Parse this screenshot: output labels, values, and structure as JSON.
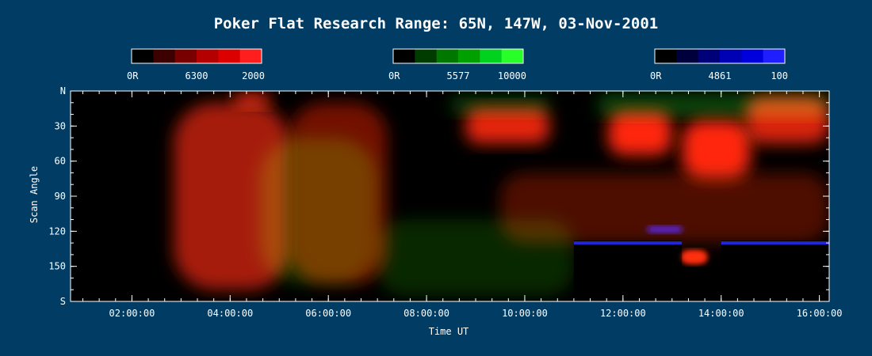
{
  "chart_data": {
    "type": "heatmap",
    "title": "Poker Flat Research Range: 65N, 147W, 03-Nov-2001",
    "xlabel": "Time UT",
    "ylabel": "Scan Angle",
    "x_range_hours": [
      0.75,
      16.2
    ],
    "x_ticks": [
      {
        "hour": 2,
        "label": "02:00:00"
      },
      {
        "hour": 4,
        "label": "04:00:00"
      },
      {
        "hour": 6,
        "label": "06:00:00"
      },
      {
        "hour": 8,
        "label": "08:00:00"
      },
      {
        "hour": 10,
        "label": "10:00:00"
      },
      {
        "hour": 12,
        "label": "12:00:00"
      },
      {
        "hour": 14,
        "label": "14:00:00"
      },
      {
        "hour": 16,
        "label": "16:00:00"
      }
    ],
    "y_range": [
      0,
      180
    ],
    "y_ticks": [
      {
        "value": 0,
        "label": "N"
      },
      {
        "value": 30,
        "label": "30"
      },
      {
        "value": 60,
        "label": "60"
      },
      {
        "value": 90,
        "label": "90"
      },
      {
        "value": 120,
        "label": "120"
      },
      {
        "value": 150,
        "label": "150"
      },
      {
        "value": 180,
        "label": "S"
      }
    ],
    "colorbars": [
      {
        "name": "6300",
        "min_label": "0R",
        "mid_label": "6300",
        "max_label": "2000",
        "colors": [
          "#000000",
          "#3c0000",
          "#780000",
          "#b40000",
          "#dc0000",
          "#ff1e1e"
        ]
      },
      {
        "name": "5577",
        "min_label": "0R",
        "mid_label": "5577",
        "max_label": "10000",
        "colors": [
          "#000000",
          "#003c00",
          "#007800",
          "#00a000",
          "#00d21e",
          "#28ff28"
        ]
      },
      {
        "name": "4861",
        "min_label": "0R",
        "mid_label": "4861",
        "max_label": "100",
        "colors": [
          "#000000",
          "#00003c",
          "#000078",
          "#0000b4",
          "#0000dc",
          "#1e1eff"
        ]
      }
    ],
    "features": [
      {
        "channel": "none",
        "t0": 0.75,
        "t1": 2.85,
        "a0": 0,
        "a1": 180,
        "intensity": 0.0
      },
      {
        "channel": "red",
        "t0": 2.85,
        "t1": 5.2,
        "a0": 10,
        "a1": 170,
        "intensity": 0.65
      },
      {
        "channel": "red",
        "t0": 5.2,
        "t1": 7.2,
        "a0": 10,
        "a1": 165,
        "intensity": 0.45
      },
      {
        "channel": "green",
        "t0": 4.6,
        "t1": 7.0,
        "a0": 40,
        "a1": 165,
        "intensity": 0.25
      },
      {
        "channel": "red",
        "t0": 4.1,
        "t1": 4.8,
        "a0": 2,
        "a1": 14,
        "intensity": 0.85
      },
      {
        "channel": "red",
        "t0": 8.8,
        "t1": 10.5,
        "a0": 15,
        "a1": 45,
        "intensity": 0.9
      },
      {
        "channel": "green",
        "t0": 8.5,
        "t1": 10.5,
        "a0": 5,
        "a1": 20,
        "intensity": 0.3
      },
      {
        "channel": "red",
        "t0": 11.7,
        "t1": 13.0,
        "a0": 18,
        "a1": 55,
        "intensity": 1.0
      },
      {
        "channel": "red",
        "t0": 13.2,
        "t1": 14.6,
        "a0": 25,
        "a1": 75,
        "intensity": 1.0
      },
      {
        "channel": "red",
        "t0": 14.5,
        "t1": 16.2,
        "a0": 5,
        "a1": 45,
        "intensity": 0.85
      },
      {
        "channel": "green",
        "t0": 11.5,
        "t1": 16.2,
        "a0": 3,
        "a1": 22,
        "intensity": 0.35
      },
      {
        "channel": "red",
        "t0": 9.5,
        "t1": 16.2,
        "a0": 70,
        "a1": 130,
        "intensity": 0.3
      },
      {
        "channel": "green",
        "t0": 7.0,
        "t1": 11.0,
        "a0": 110,
        "a1": 175,
        "intensity": 0.2
      },
      {
        "channel": "red",
        "t0": 13.2,
        "t1": 13.7,
        "a0": 137,
        "a1": 147,
        "intensity": 1.0
      },
      {
        "channel": "blue",
        "t0": 12.5,
        "t1": 13.2,
        "a0": 116,
        "a1": 121,
        "intensity": 1.0
      }
    ],
    "blackout_regions": [
      {
        "t0": 11.0,
        "t1": 13.2,
        "a0": 128,
        "a1": 180
      },
      {
        "t0": 14.0,
        "t1": 16.2,
        "a0": 128,
        "a1": 180
      }
    ],
    "blue_streaks": [
      {
        "t0": 11.0,
        "t1": 13.2,
        "a": 130
      },
      {
        "t0": 14.0,
        "t1": 16.2,
        "a": 130
      }
    ]
  }
}
